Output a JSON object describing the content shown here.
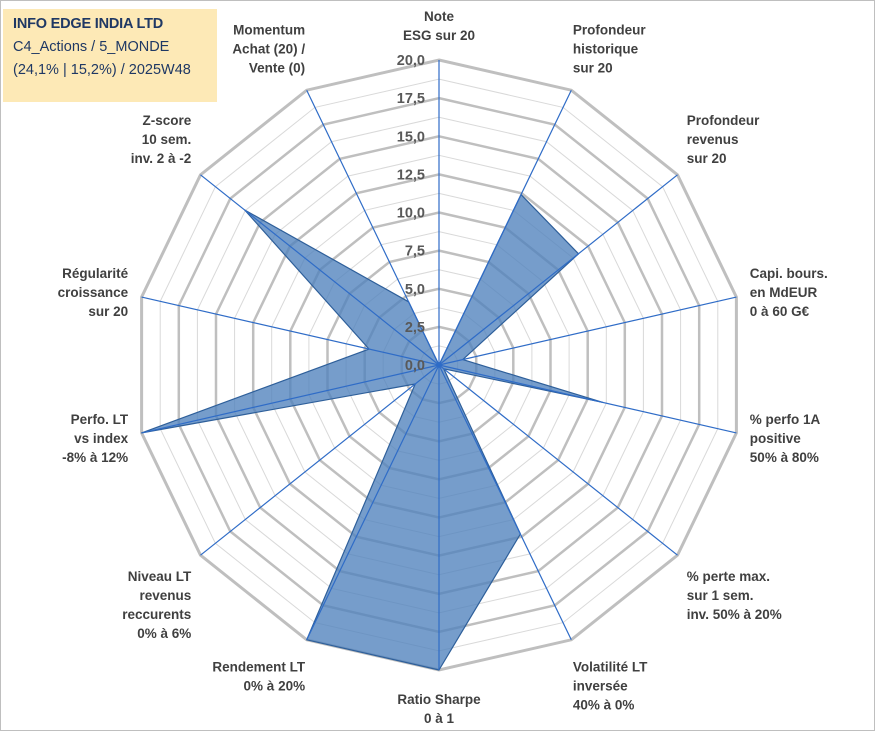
{
  "header": {
    "company": "INFO EDGE INDIA LTD",
    "category": "C4_Actions / 5_MONDE",
    "stats": "(24,1% | 15,2%) / 2025W48"
  },
  "colors": {
    "fill": "#4f81bd",
    "stroke": "#2e5f9a",
    "spoke": "#2f6cc7",
    "grid_major": "#bfbfbf",
    "grid_minor": "#d9d9d9",
    "title_bg": "#fde9b6",
    "title_text": "#1f3864"
  },
  "chart_data": {
    "type": "radar",
    "r_min": 0,
    "r_max": 20,
    "ticks": [
      "0,0",
      "2,5",
      "5,0",
      "7,5",
      "10,0",
      "12,5",
      "15,0",
      "17,5",
      "20,0"
    ],
    "grid": true,
    "categories": [
      [
        "Note",
        "ESG sur 20"
      ],
      [
        "Profondeur",
        "historique",
        "sur 20"
      ],
      [
        "Profondeur",
        "revenus",
        "sur 20"
      ],
      [
        "Capi. bours.",
        "en MdEUR",
        "0 à 60 G€"
      ],
      [
        "% perfo 1A",
        "positive",
        "50% à 80%"
      ],
      [
        "% perte max.",
        "sur 1 sem.",
        "inv. 50% à 20%"
      ],
      [
        "Volatilité LT",
        "inversée",
        "40% à 0%"
      ],
      [
        "Ratio Sharpe",
        "0 à 1"
      ],
      [
        "Rendement LT",
        "0% à 20%"
      ],
      [
        "Niveau LT",
        "revenus",
        "reccurents",
        "0% à 6%"
      ],
      [
        "Perfo. LT",
        "vs index",
        "-8% à 12%"
      ],
      [
        "Régularité",
        "croissance",
        "sur 20"
      ],
      [
        "Z-score",
        "10 sem.",
        "inv. 2 à -2"
      ],
      [
        "Momentum",
        "Achat (20) /",
        "Vente (0)"
      ]
    ],
    "series": [
      {
        "values": [
          0,
          12.4,
          11.7,
          1.6,
          11.0,
          0.4,
          12.3,
          20.0,
          20.0,
          2.0,
          20.0,
          4.7,
          16.3,
          4.6
        ]
      }
    ]
  }
}
